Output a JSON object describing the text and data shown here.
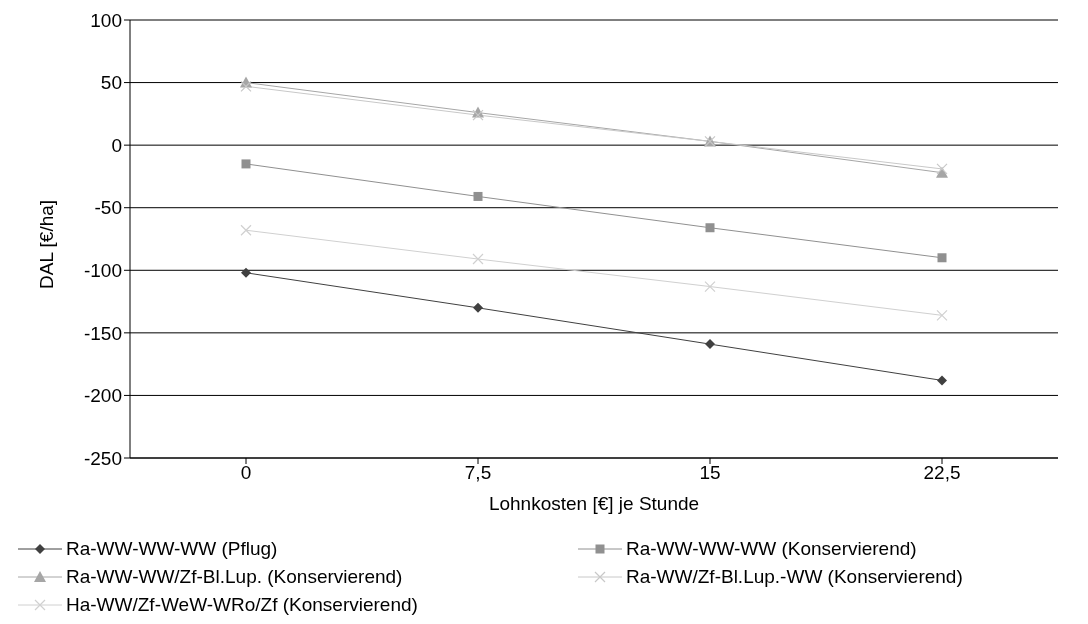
{
  "chart_data": {
    "type": "line",
    "xlabel": "Lohnkosten [€] je Stunde",
    "ylabel": "DAL [€/ha]",
    "categories": [
      "0",
      "7,5",
      "15",
      "22,5"
    ],
    "ylim": [
      -250,
      100
    ],
    "yticks": [
      -250,
      -200,
      -150,
      -100,
      -50,
      0,
      50,
      100
    ],
    "grid": "y",
    "legend": "bottom",
    "series": [
      {
        "name": "Ra-WW-WW-WW (Pflug)",
        "color": "#404040",
        "marker": "diamond",
        "values": [
          -102,
          -130,
          -159,
          -188
        ]
      },
      {
        "name": "Ra-WW-WW-WW (Konservierend)",
        "color": "#909090",
        "marker": "square",
        "values": [
          -15,
          -41,
          -66,
          -90
        ]
      },
      {
        "name": "Ra-WW-WW/Zf-Bl.Lup. (Konservierend)",
        "color": "#a6a6a6",
        "marker": "triangle",
        "values": [
          50,
          26,
          3,
          -22
        ]
      },
      {
        "name": "Ra-WW/Zf-Bl.Lup.-WW (Konservierend)",
        "color": "#c8c8c8",
        "marker": "cross",
        "values": [
          47,
          24,
          3,
          -19
        ]
      },
      {
        "name": "Ha-WW/Zf-WeW-WRo/Zf (Konservierend)",
        "color": "#d0d0d0",
        "marker": "cross",
        "values": [
          -68,
          -91,
          -113,
          -136
        ]
      }
    ]
  }
}
